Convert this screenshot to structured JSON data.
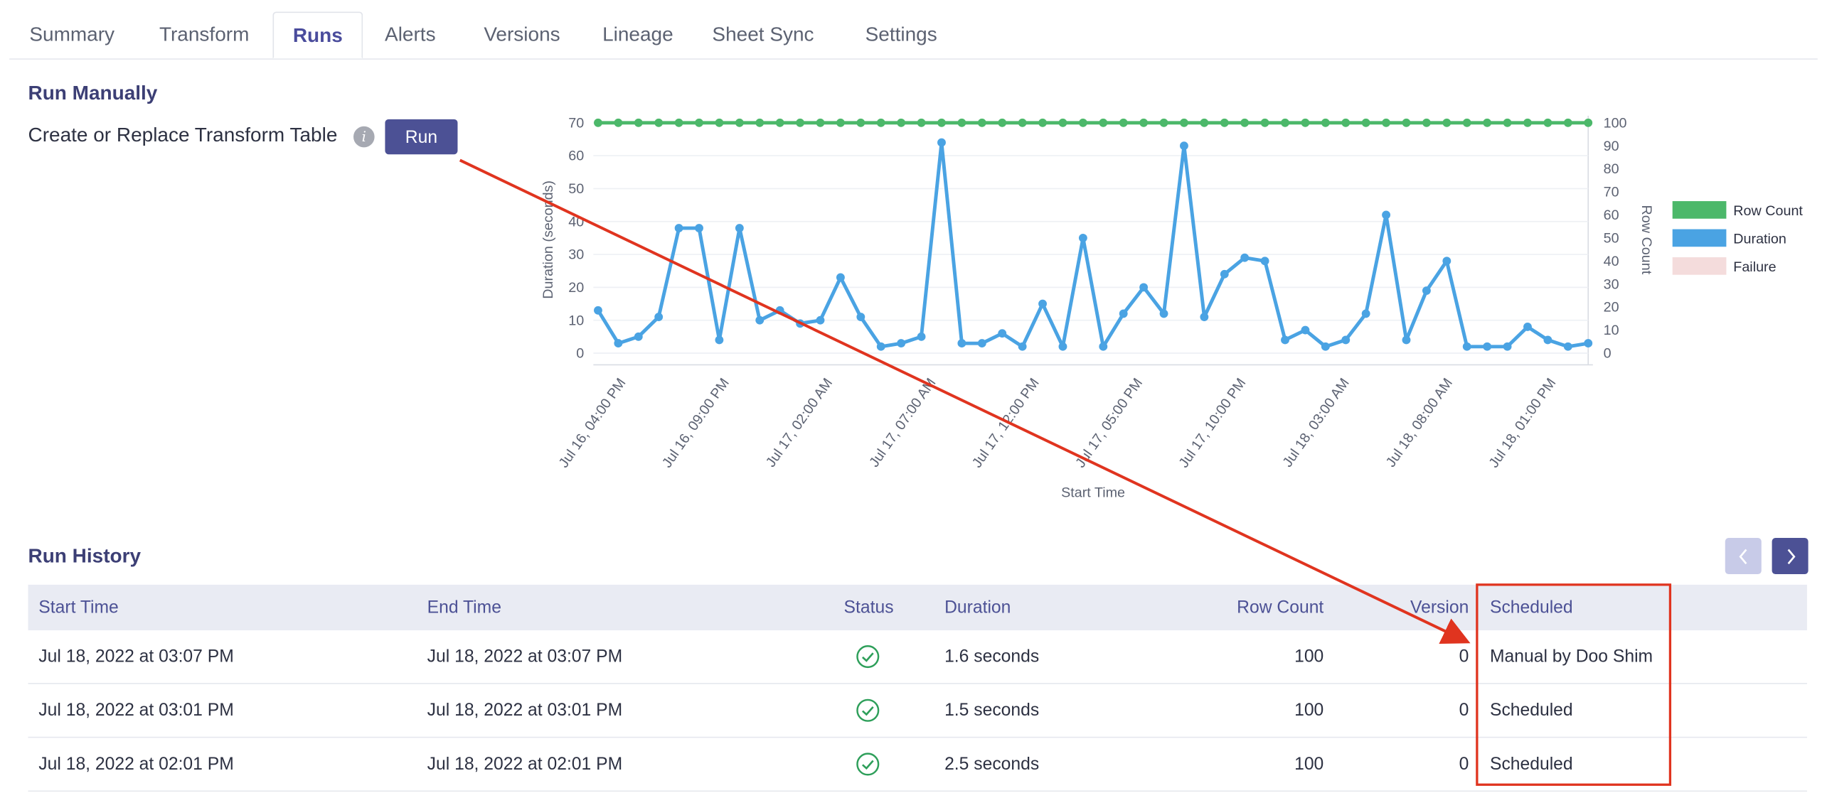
{
  "tabs": [
    {
      "label": "Summary",
      "active": false
    },
    {
      "label": "Transform",
      "active": false
    },
    {
      "label": "Runs",
      "active": true
    },
    {
      "label": "Alerts",
      "active": false
    },
    {
      "label": "Versions",
      "active": false
    },
    {
      "label": "Lineage",
      "active": false
    },
    {
      "label": "Sheet Sync",
      "active": false
    },
    {
      "label": "Settings",
      "active": false
    }
  ],
  "run_manually": {
    "title": "Run Manually",
    "label": "Create or Replace Transform Table",
    "info_icon": "info-icon",
    "button": "Run"
  },
  "run_history": {
    "title": "Run History",
    "prev_icon": "chevron-left-icon",
    "next_icon": "chevron-right-icon",
    "columns": [
      "Start Time",
      "End Time",
      "Status",
      "Duration",
      "Row Count",
      "Version",
      "Scheduled"
    ],
    "rows": [
      {
        "start": "Jul 18, 2022 at 03:07 PM",
        "end": "Jul 18, 2022 at 03:07 PM",
        "status": "success",
        "duration": "1.6 seconds",
        "row_count": "100",
        "version": "0",
        "scheduled": "Manual by Doo Shim"
      },
      {
        "start": "Jul 18, 2022 at 03:01 PM",
        "end": "Jul 18, 2022 at 03:01 PM",
        "status": "success",
        "duration": "1.5 seconds",
        "row_count": "100",
        "version": "0",
        "scheduled": "Scheduled"
      },
      {
        "start": "Jul 18, 2022 at 02:01 PM",
        "end": "Jul 18, 2022 at 02:01 PM",
        "status": "success",
        "duration": "2.5 seconds",
        "row_count": "100",
        "version": "0",
        "scheduled": "Scheduled"
      }
    ]
  },
  "colors": {
    "accent": "#4c5195",
    "row_count": "#4cb86a",
    "duration": "#4aa3e3",
    "failure": "#f4dcdc",
    "success": "#2e9f5a",
    "annotation": "#e0341f"
  },
  "chart_data": {
    "type": "line",
    "xlabel": "Start Time",
    "ylabel": "Duration (seconds)",
    "y2label": "Row Count",
    "ylim": [
      0,
      70
    ],
    "y2lim": [
      0,
      100
    ],
    "yticks": [
      0,
      10,
      20,
      30,
      40,
      50,
      60,
      70
    ],
    "y2ticks": [
      0,
      10,
      20,
      30,
      40,
      50,
      60,
      70,
      80,
      90,
      100
    ],
    "xtick_labels": [
      "Jul 16, 04:00 PM",
      "Jul 16, 09:00 PM",
      "Jul 17, 02:00 AM",
      "Jul 17, 07:00 AM",
      "Jul 17, 12:00 PM",
      "Jul 17, 05:00 PM",
      "Jul 17, 10:00 PM",
      "Jul 18, 03:00 AM",
      "Jul 18, 08:00 AM",
      "Jul 18, 01:00 PM"
    ],
    "legend": [
      "Row Count",
      "Duration",
      "Failure"
    ],
    "legend_position": "right",
    "series": [
      {
        "name": "Row Count",
        "axis": "right",
        "values": [
          100,
          100,
          100,
          100,
          100,
          100,
          100,
          100,
          100,
          100,
          100,
          100,
          100,
          100,
          100,
          100,
          100,
          100,
          100,
          100,
          100,
          100,
          100,
          100,
          100,
          100,
          100,
          100,
          100,
          100,
          100,
          100,
          100,
          100,
          100,
          100,
          100,
          100,
          100,
          100,
          100,
          100,
          100,
          100,
          100,
          100,
          100,
          100,
          100,
          100
        ]
      },
      {
        "name": "Duration",
        "axis": "left",
        "values": [
          13,
          3,
          5,
          11,
          38,
          38,
          4,
          38,
          10,
          13,
          9,
          10,
          23,
          11,
          2,
          3,
          5,
          64,
          3,
          3,
          6,
          2,
          15,
          2,
          35,
          2,
          12,
          20,
          12,
          63,
          11,
          24,
          29,
          28,
          4,
          7,
          2,
          4,
          12,
          42,
          4,
          19,
          28,
          2,
          2,
          2,
          8,
          4,
          2,
          3
        ]
      },
      {
        "name": "Failure",
        "axis": "left",
        "values": []
      }
    ]
  },
  "annotation": {
    "arrow_from": "run-button",
    "arrow_to": "scheduled-cell-row-1",
    "highlight": "scheduled-column"
  }
}
